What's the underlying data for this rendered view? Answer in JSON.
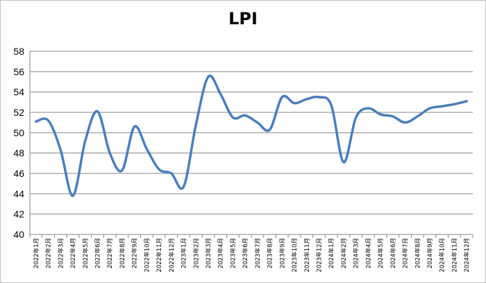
{
  "chart_data": {
    "type": "line",
    "title": "LPI",
    "xlabel": "",
    "ylabel": "",
    "ylim": [
      40,
      58
    ],
    "yticks": [
      40,
      42,
      44,
      46,
      48,
      50,
      52,
      54,
      56,
      58
    ],
    "grid": "horizontal",
    "legend": "none",
    "series_color": "#4a7ebb",
    "categories": [
      "2022年1月",
      "2022年2月",
      "2022年3月",
      "2022年4月",
      "2022年5月",
      "2022年6月",
      "2022年7月",
      "2022年8月",
      "2022年9月",
      "2022年10月",
      "2022年11月",
      "2022年12月",
      "2023年1月",
      "2023年2月",
      "2023年3月",
      "2023年4月",
      "2023年5月",
      "2023年6月",
      "2023年7月",
      "2023年8月",
      "2023年9月",
      "2023年10月",
      "2023年11月",
      "2023年12月",
      "2024年1月",
      "2024年2月",
      "2024年3月",
      "2024年4月",
      "2024年5月",
      "2024年6月",
      "2024年7月",
      "2024年8月",
      "2024年9月",
      "2024年10月",
      "2024年11月",
      "2024年12月"
    ],
    "values": [
      51.1,
      51.2,
      48.3,
      43.8,
      49.2,
      52.1,
      48.0,
      46.3,
      50.6,
      48.4,
      46.4,
      46.0,
      44.7,
      50.8,
      55.5,
      53.8,
      51.5,
      51.7,
      51.0,
      50.3,
      53.5,
      52.9,
      53.3,
      53.5,
      52.7,
      47.1,
      51.5,
      52.4,
      51.8,
      51.6,
      51.0,
      51.6,
      52.4,
      52.6,
      52.8,
      53.1
    ]
  }
}
